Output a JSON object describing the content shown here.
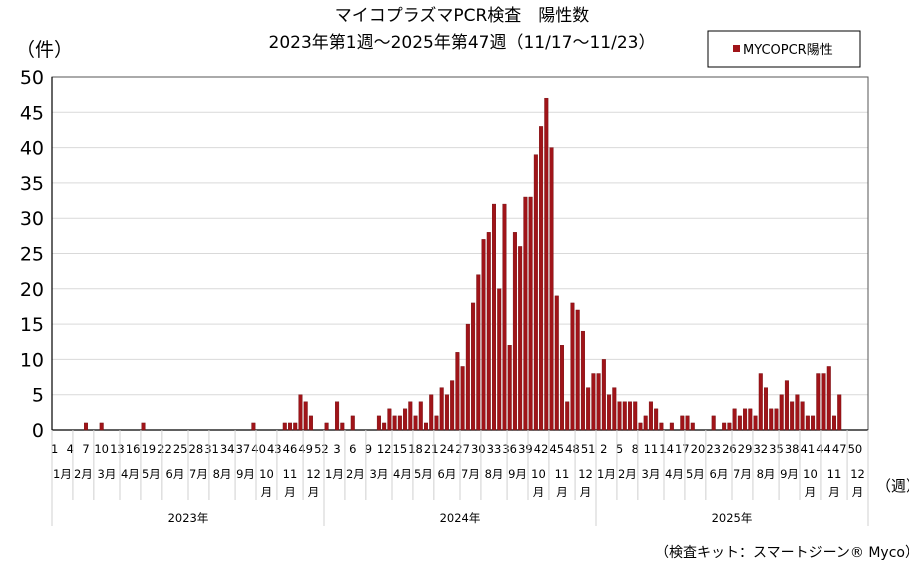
{
  "chart_data": {
    "type": "bar",
    "title_line1": "マイコプラズマPCR検査　陽性数",
    "title_line2": "2023年第1週～2025年第47週（11/17～11/23）",
    "ylabel": "（件）",
    "xlabel": "（週）",
    "ylim": [
      0,
      50
    ],
    "ytick_step": 5,
    "grid": true,
    "legend": {
      "position": "top-right",
      "entries": [
        "MYCOPCR陽性"
      ]
    },
    "series_color": "#a01419",
    "weeks_per_year": 52,
    "years": [
      {
        "label": "2023年",
        "values": [
          0,
          0,
          0,
          0,
          0,
          0,
          1,
          0,
          0,
          1,
          0,
          0,
          0,
          0,
          0,
          0,
          0,
          1,
          0,
          0,
          0,
          0,
          0,
          0,
          0,
          0,
          0,
          0,
          0,
          0,
          0,
          0,
          0,
          0,
          0,
          0,
          0,
          0,
          1,
          0,
          0,
          0,
          0,
          0,
          1,
          1,
          1,
          5,
          4,
          2,
          0,
          0
        ]
      },
      {
        "label": "2024年",
        "values": [
          1,
          0,
          4,
          1,
          0,
          2,
          0,
          0,
          0,
          0,
          2,
          1,
          3,
          2,
          2,
          3,
          4,
          2,
          4,
          1,
          5,
          2,
          6,
          5,
          7,
          11,
          9,
          15,
          18,
          22,
          27,
          28,
          32,
          20,
          32,
          12,
          28,
          26,
          33,
          33,
          39,
          43,
          47,
          40,
          19,
          12,
          4,
          18,
          17,
          14,
          6,
          8
        ]
      },
      {
        "label": "2025年",
        "values": [
          8,
          10,
          5,
          6,
          4,
          4,
          4,
          4,
          1,
          2,
          4,
          3,
          1,
          0,
          1,
          0,
          2,
          2,
          1,
          0,
          0,
          0,
          2,
          0,
          1,
          1,
          3,
          2,
          3,
          3,
          2,
          8,
          6,
          3,
          3,
          5,
          7,
          4,
          5,
          4,
          2,
          2,
          8,
          8,
          9,
          2,
          5
        ]
      }
    ],
    "months": [
      "1月",
      "2月",
      "3月",
      "4月",
      "5月",
      "6月",
      "7月",
      "8月",
      "9月",
      "10月",
      "11月",
      "12月"
    ],
    "month_start_weeks": [
      1,
      5,
      9,
      14,
      18,
      22,
      27,
      31,
      36,
      40,
      44,
      49
    ],
    "week_tick_every": 3
  },
  "footnote": "（検査キット：スマートジーン® Myco）"
}
